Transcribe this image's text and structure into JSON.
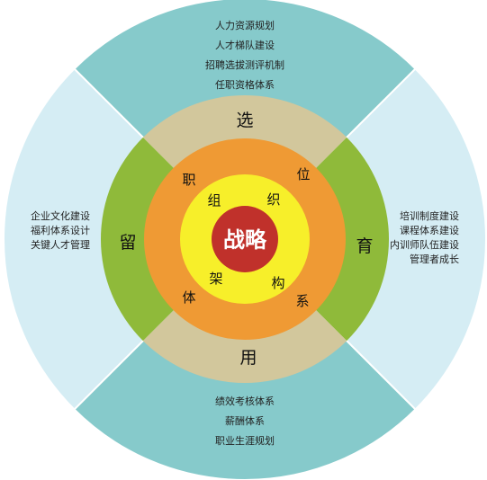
{
  "outer_ring": {
    "top": [
      "人力资源规划",
      "人才梯队建设",
      "招聘选拔测评机制",
      "任职资格体系"
    ],
    "right": [
      "培训制度建设",
      "课程体系建设",
      "内训师队伍建设",
      "管理者成长"
    ],
    "bottom": [
      "绩效考核体系",
      "薪酬体系",
      "职业生涯规划"
    ],
    "left": [
      "企业文化建设",
      "福利体系设计",
      "关键人才管理"
    ]
  },
  "middle_ring": {
    "top": "选",
    "right": "育",
    "bottom": "用",
    "left": "留"
  },
  "orange_ring": [
    "职",
    "位",
    "体",
    "系"
  ],
  "yellow_ring": [
    "组",
    "织",
    "架",
    "构"
  ],
  "core": "战略",
  "colors": {
    "outer_top_bottom": "#86cacb",
    "outer_left_right": "#d5edf4",
    "middle_top_bottom": "#d2c79c",
    "middle_left_right": "#8fba3a",
    "orange": "#ef9a34",
    "yellow": "#f7ef2a",
    "core": "#c0312b"
  }
}
